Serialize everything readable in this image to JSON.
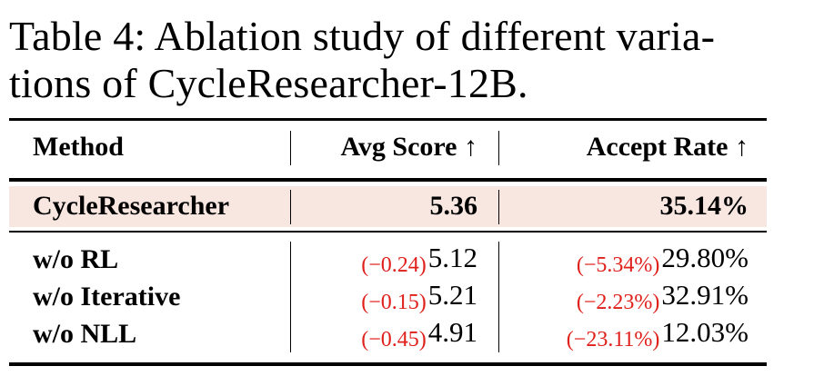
{
  "caption": {
    "line1": "Table 4: Ablation study of different varia-",
    "line2": "tions of CycleResearcher-12B."
  },
  "table": {
    "headers": {
      "method": "Method",
      "avg_score": "Avg Score ↑",
      "accept_rate": "Accept Rate ↑"
    },
    "highlight_color": "#f8e6e1",
    "delta_color": "#e0201b",
    "main_row": {
      "method": "CycleResearcher",
      "avg_score": "5.36",
      "accept_rate": "35.14%"
    },
    "ablation_rows": [
      {
        "method": "w/o RL",
        "avg_delta": "(−0.24)",
        "avg_score": "5.12",
        "rate_delta": "(−5.34%)",
        "accept_rate": "29.80%"
      },
      {
        "method": "w/o Iterative",
        "avg_delta": "(−0.15)",
        "avg_score": "5.21",
        "rate_delta": "(−2.23%)",
        "accept_rate": "32.91%"
      },
      {
        "method": "w/o NLL",
        "avg_delta": "(−0.45)",
        "avg_score": "4.91",
        "rate_delta": "(−23.11%)",
        "accept_rate": "12.03%"
      }
    ]
  }
}
